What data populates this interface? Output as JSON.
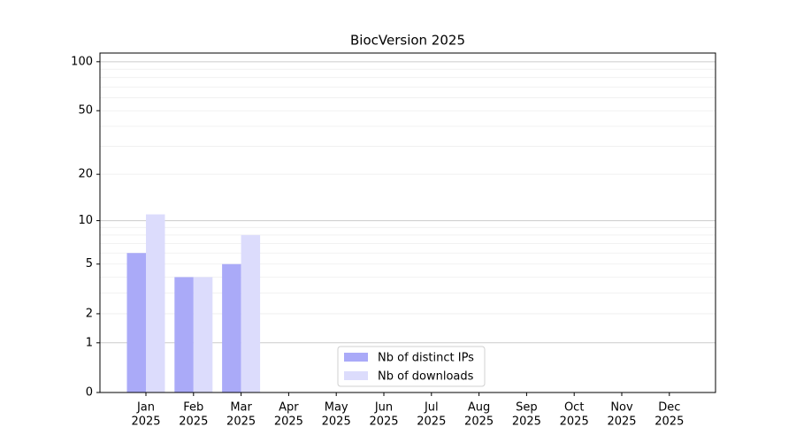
{
  "chart_data": {
    "type": "bar",
    "title": "BiocVersion 2025",
    "categories": [
      [
        "Jan",
        "2025"
      ],
      [
        "Feb",
        "2025"
      ],
      [
        "Mar",
        "2025"
      ],
      [
        "Apr",
        "2025"
      ],
      [
        "May",
        "2025"
      ],
      [
        "Jun",
        "2025"
      ],
      [
        "Jul",
        "2025"
      ],
      [
        "Aug",
        "2025"
      ],
      [
        "Sep",
        "2025"
      ],
      [
        "Oct",
        "2025"
      ],
      [
        "Nov",
        "2025"
      ],
      [
        "Dec",
        "2025"
      ]
    ],
    "series": [
      {
        "name": "Nb of distinct IPs",
        "color": "#aaaaf8",
        "values": [
          6,
          4,
          5,
          0,
          0,
          0,
          0,
          0,
          0,
          0,
          0,
          0
        ]
      },
      {
        "name": "Nb of downloads",
        "color": "#dcdcfc",
        "values": [
          11,
          4,
          8,
          0,
          0,
          0,
          0,
          0,
          0,
          0,
          0,
          0
        ]
      }
    ],
    "yscale": "log1p",
    "ylim": [
      0,
      113
    ],
    "yticks": [
      0,
      1,
      2,
      5,
      10,
      20,
      50,
      100
    ],
    "major_grid": [
      1,
      10,
      100
    ],
    "minor_grid": [
      2,
      3,
      4,
      5,
      6,
      7,
      8,
      9,
      20,
      30,
      40,
      50,
      60,
      70,
      80,
      90
    ],
    "legend": "lower center"
  }
}
